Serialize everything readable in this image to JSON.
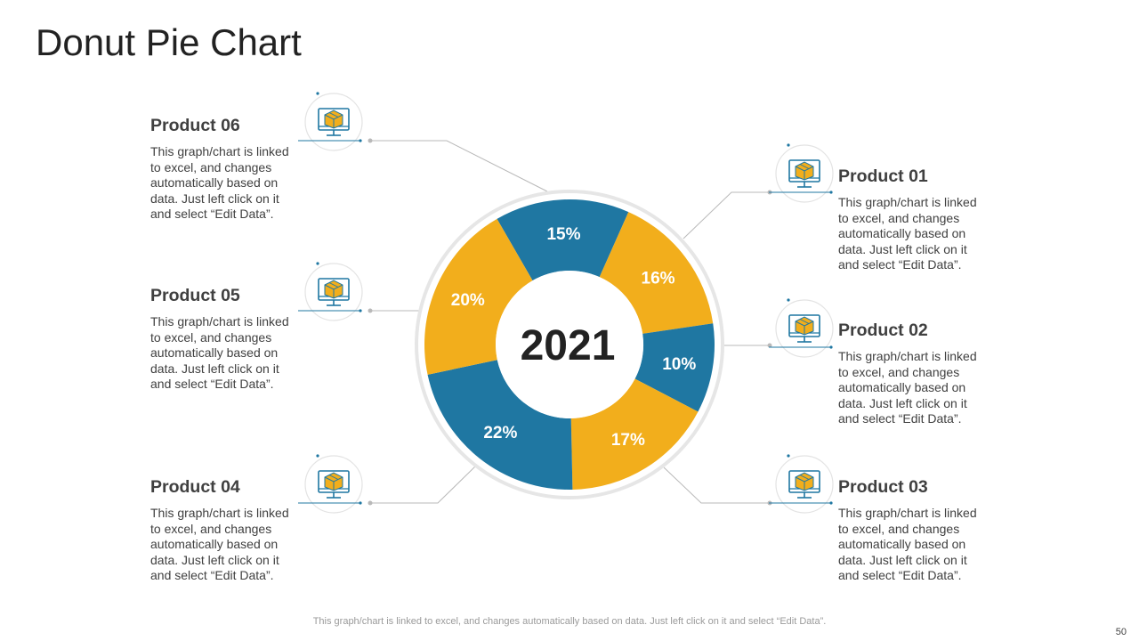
{
  "title": "Donut Pie Chart",
  "products": [
    {
      "name": "Product 01",
      "description": "This graph/chart is linked to excel, and changes automatically based on data. Just left click on it and select “Edit Data”."
    },
    {
      "name": "Product 02",
      "description": "This graph/chart is linked to excel, and changes automatically based on data. Just left click on it and select “Edit Data”."
    },
    {
      "name": "Product 03",
      "description": "This graph/chart is linked to excel, and changes automatically based on data. Just left click on it and select “Edit Data”."
    },
    {
      "name": "Product 04",
      "description": "This graph/chart is linked to excel, and changes automatically based on data. Just left click on it and select “Edit Data”."
    },
    {
      "name": "Product 05",
      "description": "This graph/chart is linked to excel, and changes automatically based on data. Just left click on it and select “Edit Data”."
    },
    {
      "name": "Product 06",
      "description": "This graph/chart is linked to excel, and changes automatically based on data. Just left click on it and select “Edit Data”."
    }
  ],
  "chart_data": {
    "type": "pie",
    "style": "donut",
    "center_label": "2021",
    "slices": [
      {
        "label": "15%",
        "value": 15,
        "color": "#1f77a2"
      },
      {
        "label": "16%",
        "value": 16,
        "color": "#f2ae1c"
      },
      {
        "label": "10%",
        "value": 10,
        "color": "#1f77a2"
      },
      {
        "label": "17%",
        "value": 17,
        "color": "#f2ae1c"
      },
      {
        "label": "22%",
        "value": 22,
        "color": "#1f77a2"
      },
      {
        "label": "20%",
        "value": 20,
        "color": "#f2ae1c"
      }
    ]
  },
  "footer_text": "This graph/chart is linked to excel, and changes automatically based on data. Just left click on it and select “Edit Data”.",
  "page_number": "50",
  "colors": {
    "blue": "#1f77a2",
    "yellow": "#f2ae1c",
    "gray": "#c8c8c8"
  }
}
